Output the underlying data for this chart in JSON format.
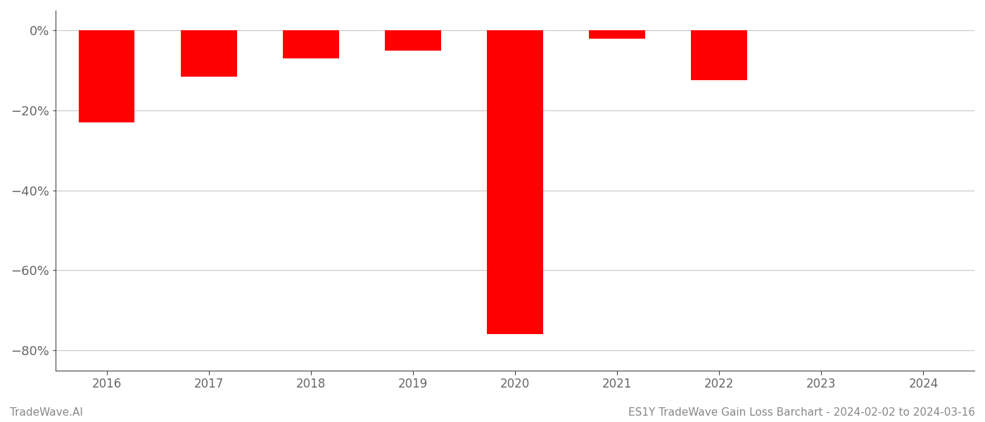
{
  "years": [
    2016,
    2017,
    2018,
    2019,
    2020,
    2021,
    2022,
    2023,
    2024
  ],
  "values": [
    -23.0,
    -11.5,
    -7.0,
    -5.0,
    -76.0,
    -2.0,
    -12.5,
    0,
    0
  ],
  "bar_color": "#ff0000",
  "background_color": "#ffffff",
  "grid_color": "#c8c8c8",
  "axis_color": "#444444",
  "text_color": "#666666",
  "ylim": [
    -85,
    5
  ],
  "yticks": [
    0,
    -20,
    -40,
    -60,
    -80
  ],
  "ytick_labels": [
    "0%",
    "−20%",
    "−40%",
    "−60%",
    "−80%"
  ],
  "xlabel": "",
  "ylabel": "",
  "title": "",
  "footer_left": "TradeWave.AI",
  "footer_right": "ES1Y TradeWave Gain Loss Barchart - 2024-02-02 to 2024-03-16",
  "footer_color": "#888888",
  "footer_fontsize": 11,
  "bar_width": 0.55
}
